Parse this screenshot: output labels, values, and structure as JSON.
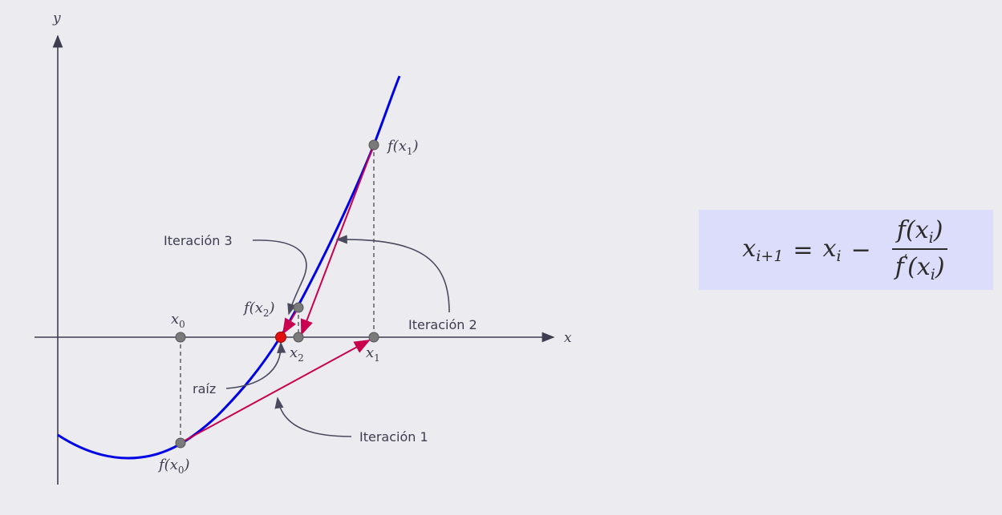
{
  "axes": {
    "x_label": "x",
    "y_label": "y"
  },
  "points": {
    "x0": {
      "name": "x",
      "sub": "0"
    },
    "x1": {
      "name": "x",
      "sub": "1"
    },
    "x2": {
      "name": "x",
      "sub": "2"
    },
    "fx0": {
      "prefix": "f(",
      "name": "x",
      "sub": "0",
      "suffix": ")"
    },
    "fx1": {
      "prefix": "f(",
      "name": "x",
      "sub": "1",
      "suffix": ")"
    },
    "fx2": {
      "prefix": "f(",
      "name": "x",
      "sub": "2",
      "suffix": ")"
    }
  },
  "annotations": {
    "iter1": "Iteración 1",
    "iter2": "Iteración 2",
    "iter3": "Iteración 3",
    "root": "raíz"
  },
  "formula": {
    "lhs_var": "x",
    "lhs_sub": "i+1",
    "equals": "=",
    "rhs_var": "x",
    "rhs_sub": "i",
    "minus": "−",
    "num_prefix": "f(",
    "num_var": "x",
    "num_sub": "i",
    "num_suffix": ")",
    "den_prefix": "f",
    "den_prime": "′",
    "den_open": "(",
    "den_var": "x",
    "den_sub": "i",
    "den_suffix": ")"
  },
  "colors": {
    "curve": "#0000e6",
    "tangent": "#c8004e",
    "axis": "#3d3d4f",
    "point": "#7a7a7a",
    "root_point": "#e01010",
    "formula_bg": "#dcdcfb"
  }
}
